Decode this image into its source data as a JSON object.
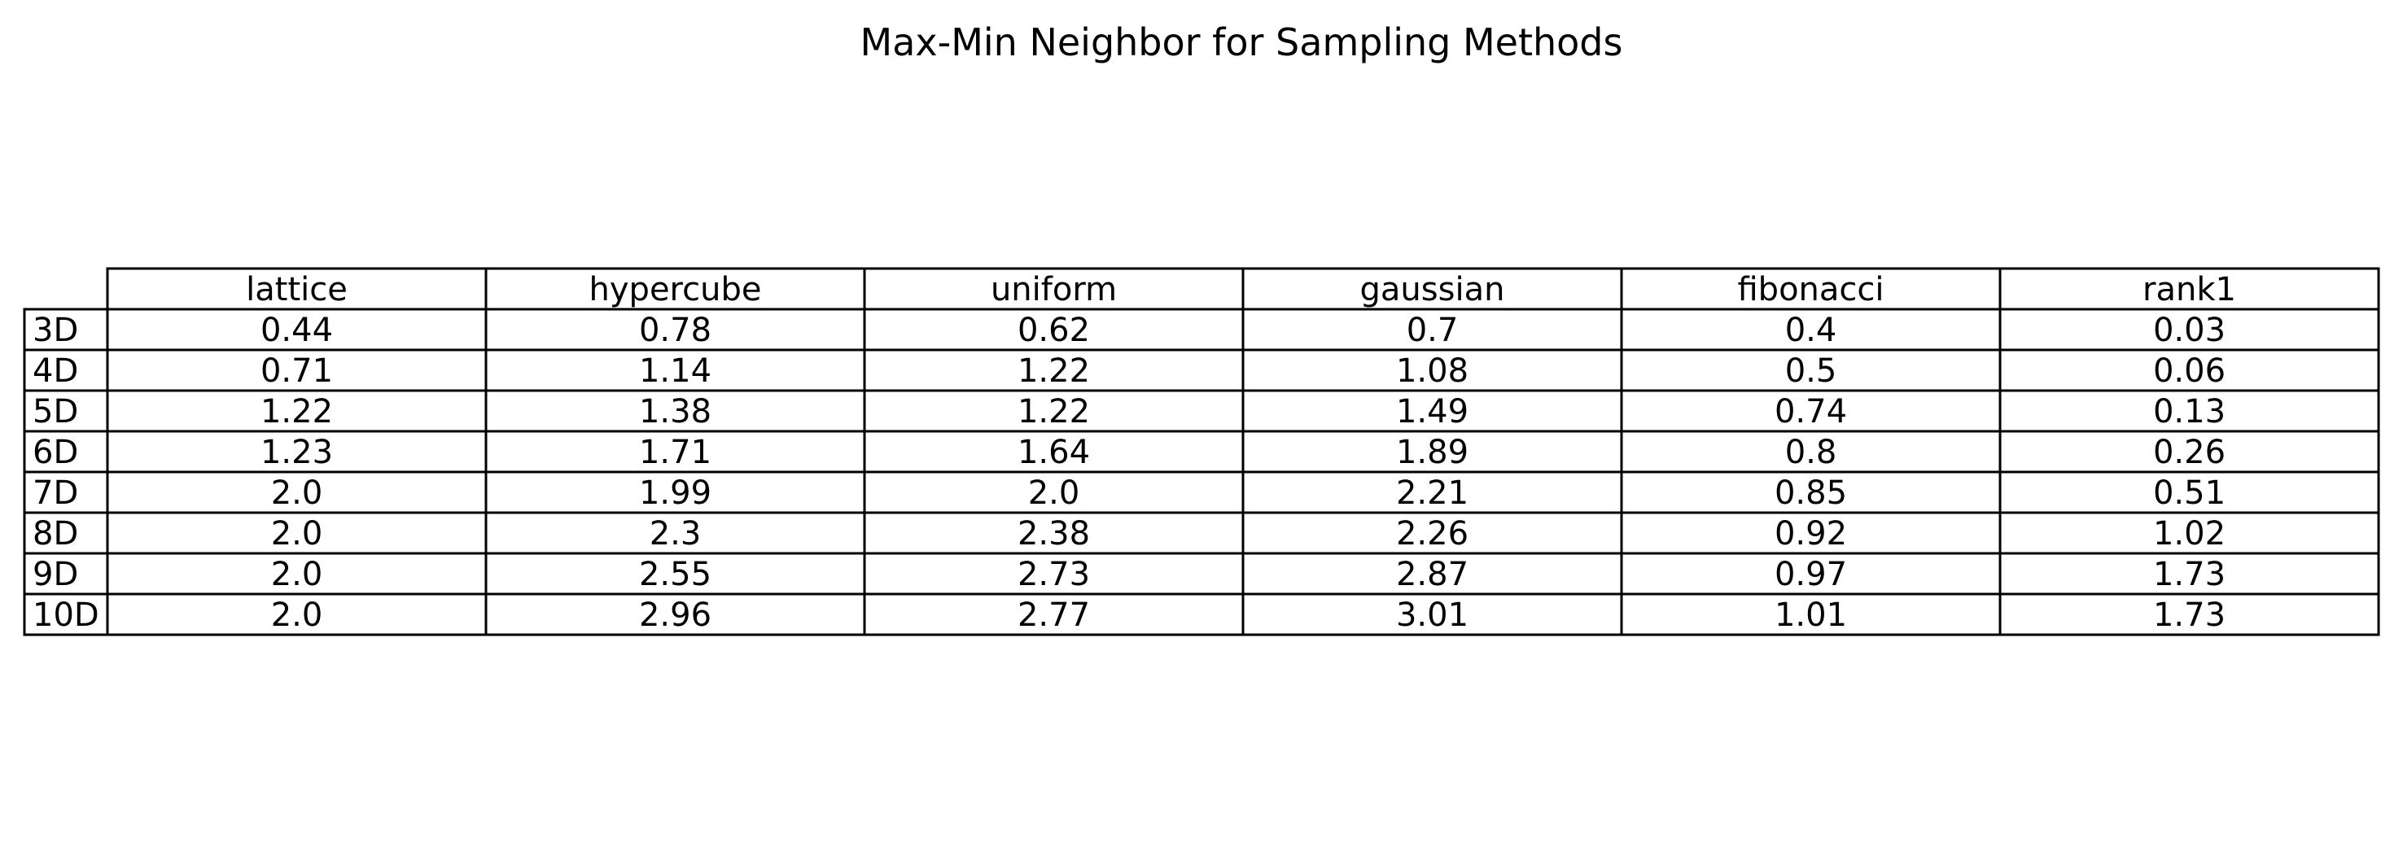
{
  "chart_data": {
    "type": "table",
    "title": "Max-Min Neighbor for Sampling Methods",
    "columns": [
      "lattice",
      "hypercube",
      "uniform",
      "gaussian",
      "fibonacci",
      "rank1"
    ],
    "rows": [
      {
        "label": "3D",
        "values": [
          "0.44",
          "0.78",
          "0.62",
          "0.7",
          "0.4",
          "0.03"
        ]
      },
      {
        "label": "4D",
        "values": [
          "0.71",
          "1.14",
          "1.22",
          "1.08",
          "0.5",
          "0.06"
        ]
      },
      {
        "label": "5D",
        "values": [
          "1.22",
          "1.38",
          "1.22",
          "1.49",
          "0.74",
          "0.13"
        ]
      },
      {
        "label": "6D",
        "values": [
          "1.23",
          "1.71",
          "1.64",
          "1.89",
          "0.8",
          "0.26"
        ]
      },
      {
        "label": "7D",
        "values": [
          "2.0",
          "1.99",
          "2.0",
          "2.21",
          "0.85",
          "0.51"
        ]
      },
      {
        "label": "8D",
        "values": [
          "2.0",
          "2.3",
          "2.38",
          "2.26",
          "0.92",
          "1.02"
        ]
      },
      {
        "label": "9D",
        "values": [
          "2.0",
          "2.55",
          "2.73",
          "2.87",
          "0.97",
          "1.73"
        ]
      },
      {
        "label": "10D",
        "values": [
          "2.0",
          "2.96",
          "2.77",
          "3.01",
          "1.01",
          "1.73"
        ]
      }
    ]
  }
}
